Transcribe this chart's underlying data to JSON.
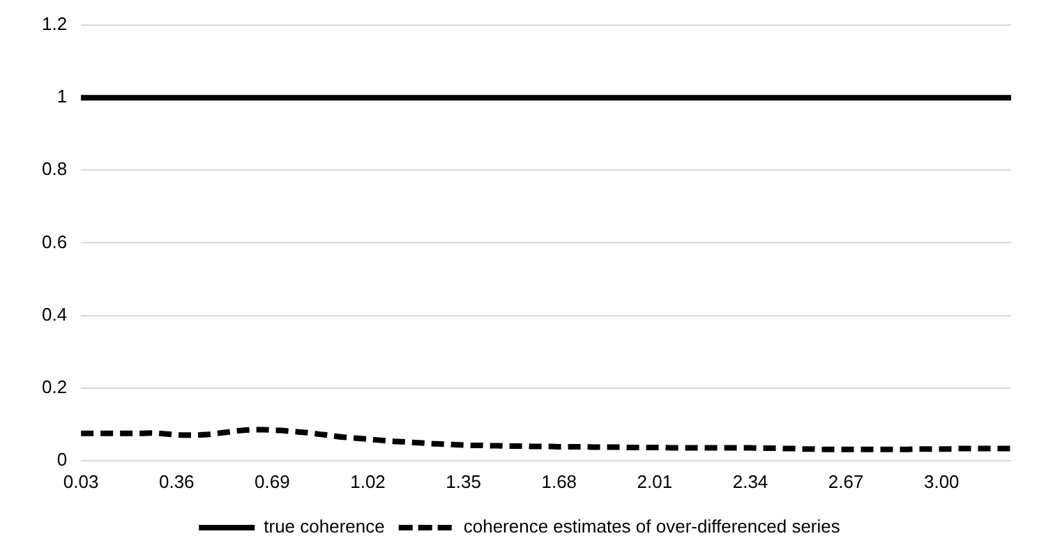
{
  "chart_data": {
    "type": "line",
    "categories": [
      "0.03",
      null,
      null,
      null,
      null,
      null,
      null,
      null,
      null,
      null,
      null,
      "0.36",
      null,
      null,
      null,
      null,
      null,
      null,
      null,
      null,
      null,
      null,
      "0.69",
      null,
      null,
      null,
      null,
      null,
      null,
      null,
      null,
      null,
      null,
      "1.02",
      null,
      null,
      null,
      null,
      null,
      null,
      null,
      null,
      null,
      null,
      "1.35",
      null,
      null,
      null,
      null,
      null,
      null,
      null,
      null,
      null,
      null,
      "1.68",
      null,
      null,
      null,
      null,
      null,
      null,
      null,
      null,
      null,
      null,
      "2.01",
      null,
      null,
      null,
      null,
      null,
      null,
      null,
      null,
      null,
      null,
      "2.34",
      null,
      null,
      null,
      null,
      null,
      null,
      null,
      null,
      null,
      null,
      "2.67",
      null,
      null,
      null,
      null,
      null,
      null,
      null,
      null,
      null,
      null,
      "3.00",
      null,
      null,
      null,
      null,
      null,
      null,
      null,
      null
    ],
    "series": [
      {
        "name": "true coherence",
        "color": "#000000",
        "line_style": "solid",
        "values": [
          1,
          1,
          1,
          1,
          1,
          1,
          1,
          1,
          1,
          1,
          1,
          1,
          1,
          1,
          1,
          1,
          1,
          1,
          1,
          1,
          1,
          1,
          1,
          1,
          1,
          1,
          1,
          1,
          1,
          1,
          1,
          1,
          1,
          1,
          1,
          1,
          1,
          1,
          1,
          1,
          1,
          1,
          1,
          1,
          1,
          1,
          1,
          1,
          1,
          1,
          1,
          1,
          1,
          1,
          1,
          1,
          1,
          1,
          1,
          1,
          1,
          1,
          1,
          1,
          1,
          1,
          1,
          1,
          1,
          1,
          1,
          1,
          1,
          1,
          1,
          1,
          1,
          1,
          1,
          1,
          1,
          1,
          1,
          1,
          1,
          1,
          1,
          1,
          1,
          1,
          1,
          1,
          1,
          1,
          1,
          1,
          1,
          1,
          1,
          1,
          1,
          1,
          1,
          1,
          1,
          1,
          1,
          1
        ]
      },
      {
        "name": "coherence estimates of over-differenced series",
        "color": "#000000",
        "line_style": "dashed",
        "values": [
          0.075,
          0.075,
          0.075,
          0.075,
          0.075,
          0.075,
          0.075,
          0.075,
          0.076,
          0.075,
          0.073,
          0.071,
          0.07,
          0.07,
          0.071,
          0.073,
          0.076,
          0.079,
          0.082,
          0.084,
          0.085,
          0.085,
          0.084,
          0.083,
          0.081,
          0.079,
          0.077,
          0.074,
          0.071,
          0.068,
          0.065,
          0.063,
          0.061,
          0.059,
          0.057,
          0.055,
          0.053,
          0.052,
          0.05,
          0.049,
          0.047,
          0.046,
          0.045,
          0.044,
          0.043,
          0.042,
          0.042,
          0.041,
          0.041,
          0.04,
          0.04,
          0.04,
          0.039,
          0.039,
          0.039,
          0.038,
          0.038,
          0.038,
          0.038,
          0.037,
          0.037,
          0.037,
          0.037,
          0.036,
          0.036,
          0.036,
          0.036,
          0.036,
          0.035,
          0.035,
          0.035,
          0.035,
          0.035,
          0.035,
          0.035,
          0.035,
          0.035,
          0.035,
          0.034,
          0.034,
          0.034,
          0.033,
          0.033,
          0.032,
          0.032,
          0.031,
          0.031,
          0.031,
          0.031,
          0.031,
          0.031,
          0.031,
          0.031,
          0.031,
          0.031,
          0.031,
          0.032,
          0.032,
          0.032,
          0.032,
          0.032,
          0.033,
          0.033,
          0.033,
          0.033,
          0.033,
          0.033,
          0.033
        ]
      }
    ],
    "ylim": [
      0,
      1.2
    ],
    "yticks": [
      0,
      0.2,
      0.4,
      0.6,
      0.8,
      1,
      1.2
    ],
    "grid": "y",
    "legend": "bottom",
    "marker": "none"
  }
}
